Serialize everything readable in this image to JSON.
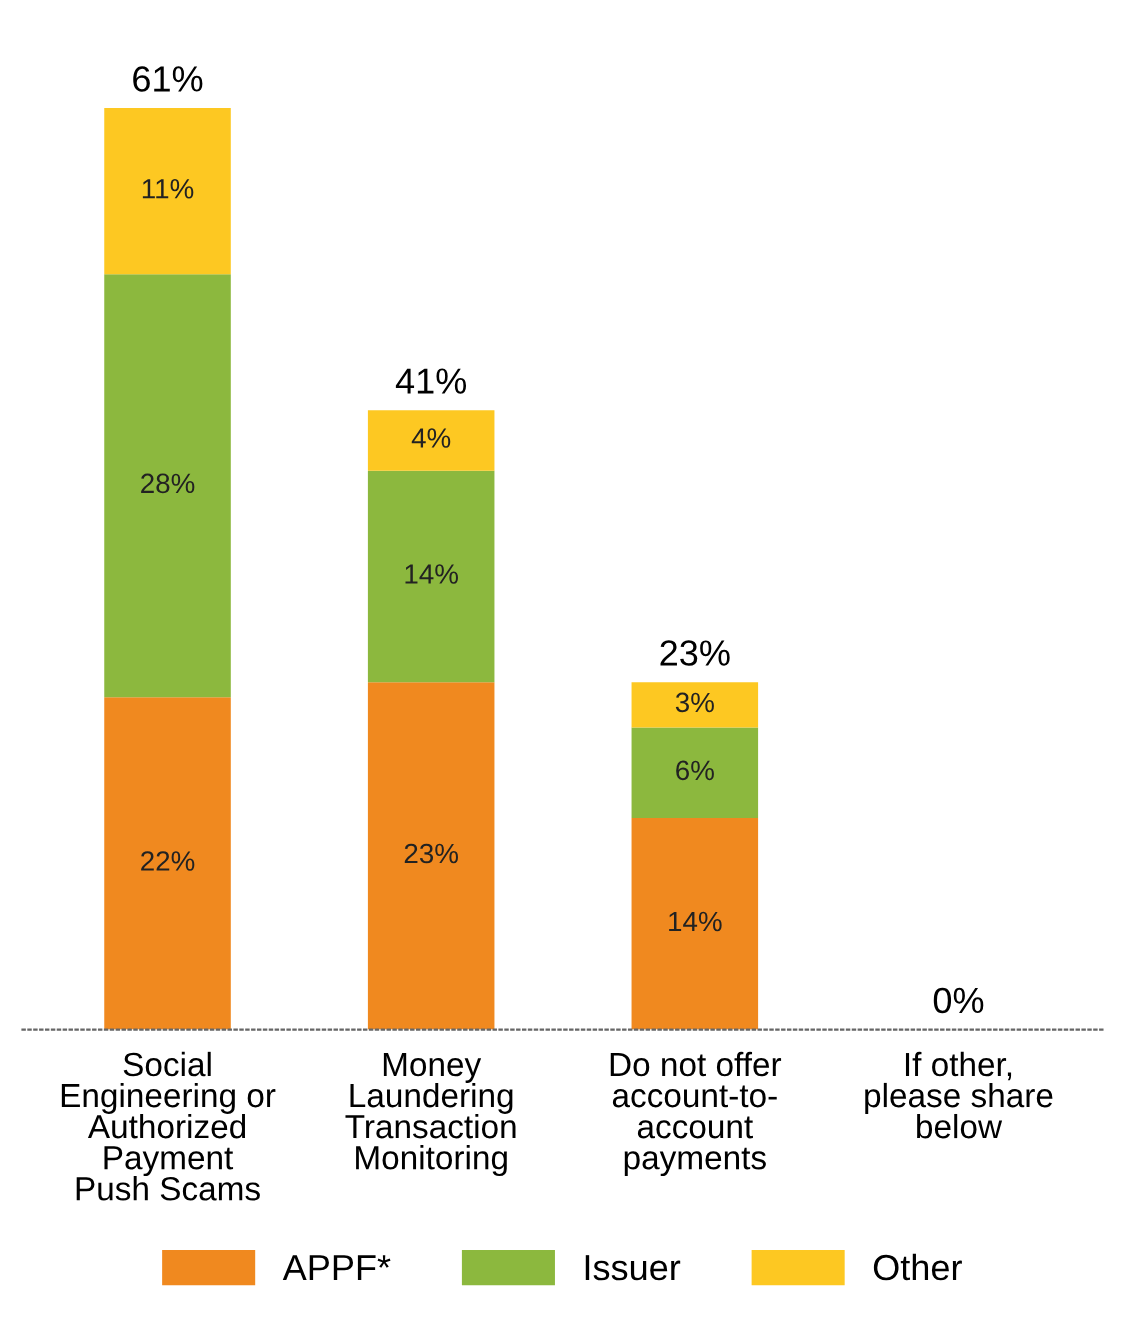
{
  "chart_data": {
    "type": "bar",
    "stacked": true,
    "categories": [
      "Social\nEngineering or\nAuthorized\nPayment\nPush Scams",
      "Money\nLaundering\nTransaction\nMonitoring",
      "Do not offer\naccount-to-\naccount\npayments",
      "If other,\nplease share\nbelow"
    ],
    "series": [
      {
        "name": "APPF*",
        "color": "#f0891f",
        "values": [
          22,
          23,
          14,
          0
        ],
        "value_labels": [
          "22%",
          "23%",
          "14%",
          null
        ]
      },
      {
        "name": "Issuer",
        "color": "#8cb83e",
        "values": [
          28,
          14,
          6,
          0
        ],
        "value_labels": [
          "28%",
          "14%",
          "6%",
          null
        ]
      },
      {
        "name": "Other",
        "color": "#fdc822",
        "values": [
          11,
          4,
          3,
          0
        ],
        "value_labels": [
          "11%",
          "4%",
          "3%",
          null
        ]
      }
    ],
    "totals": [
      "61%",
      "41%",
      "23%",
      "0%"
    ],
    "legend": "bottom",
    "grid": false
  }
}
